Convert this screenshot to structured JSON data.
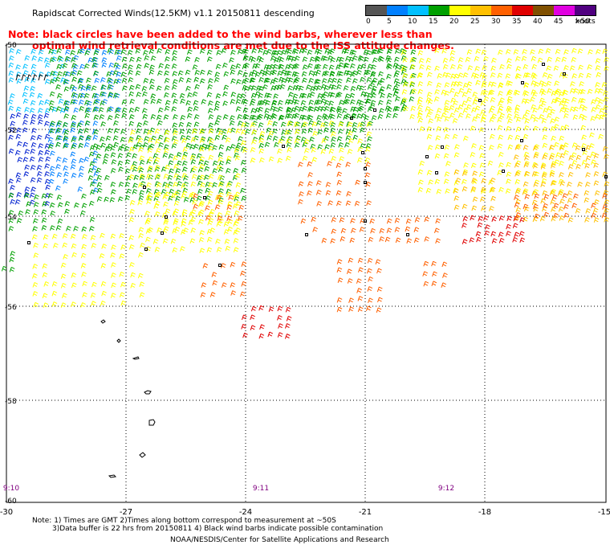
{
  "title": "Rapidscat Corrected Winds(12.5KM) v1.1 20150811 descending",
  "note": {
    "line1": "Note: black circles have been added to the wind barbs, wherever less than",
    "line2": "optimal wind retrieval conditions are met due to the ISS attitude changes."
  },
  "legend": {
    "labels": [
      "0",
      "5",
      "10",
      "15",
      "20",
      "25",
      "30",
      "35",
      "40",
      "45",
      ">50"
    ],
    "unit": "knots",
    "colors": [
      "#555555",
      "#0080ff",
      "#00c0ff",
      "#00a000",
      "#ffff00",
      "#ffc000",
      "#ff6000",
      "#e00000",
      "#805000",
      "#e000e0",
      "#500080"
    ]
  },
  "axes": {
    "lon_labels": [
      "-30",
      "-27",
      "-24",
      "-21",
      "-18",
      "-15"
    ],
    "lat_labels": [
      "-50",
      "-52",
      "-54",
      "-56",
      "-58",
      "-60"
    ]
  },
  "times": [
    "9:10",
    "9:11",
    "9:12"
  ],
  "footer": {
    "line1": "Note: 1) Times are GMT 2)Times along bottom correspond to measurement at ~50S",
    "line2": "3)Data buffer is 22 hrs from 20150811 4) Black wind barbs indicate possible contamination",
    "line3": "NOAA/NESDIS/Center for Satellite Applications and Research"
  }
}
